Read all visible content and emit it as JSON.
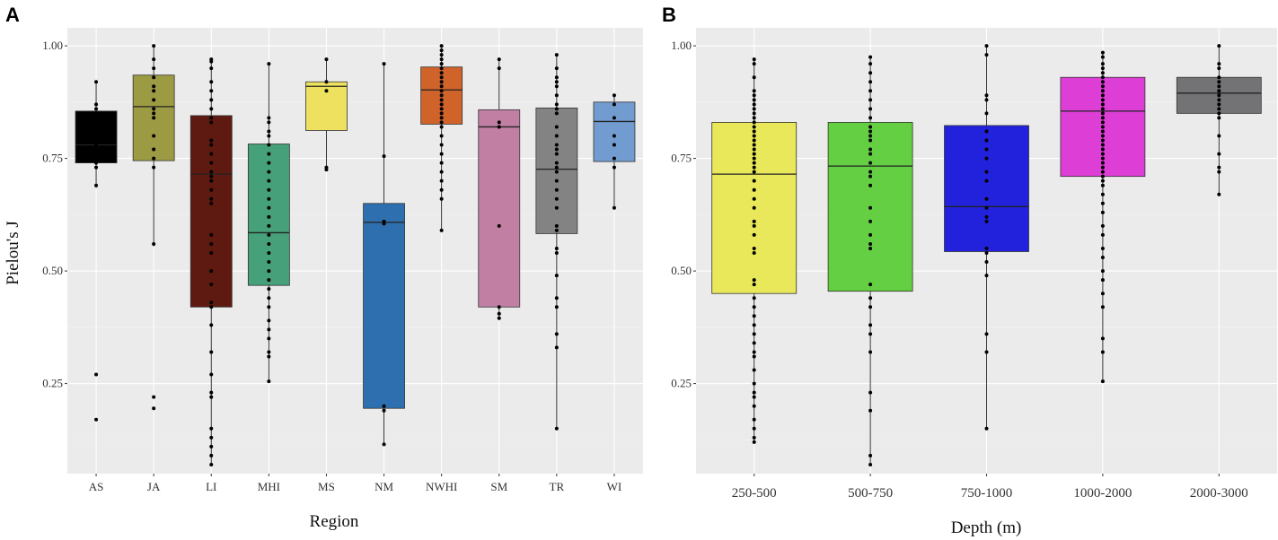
{
  "chart_data": [
    {
      "type": "box",
      "panel_label": "A",
      "xlabel": "Region",
      "ylabel": "Pielou's J",
      "ylim": [
        0.05,
        1.04
      ],
      "yticks": [
        0.25,
        0.5,
        0.75,
        1.0
      ],
      "ytick_labels": [
        "0.25",
        "0.50",
        "0.75",
        "1.00"
      ],
      "grid": true,
      "categories": [
        "AS",
        "JA",
        "LI",
        "MHI",
        "MS",
        "NM",
        "NWHI",
        "SM",
        "TR",
        "WI"
      ],
      "boxes": [
        {
          "q1": 0.74,
          "median": 0.78,
          "q3": 0.855,
          "whisker_low": 0.685,
          "whisker_high": 0.92,
          "color": "#000000",
          "points": [
            0.92,
            0.87,
            0.86,
            0.85,
            0.8,
            0.78,
            0.77,
            0.76,
            0.74,
            0.73,
            0.69,
            0.27,
            0.17
          ]
        },
        {
          "q1": 0.745,
          "median": 0.865,
          "q3": 0.935,
          "whisker_low": 0.555,
          "whisker_high": 1.0,
          "color": "#9c9a42",
          "points": [
            1.0,
            0.97,
            0.95,
            0.93,
            0.91,
            0.9,
            0.88,
            0.86,
            0.85,
            0.84,
            0.8,
            0.77,
            0.75,
            0.73,
            0.56,
            0.22,
            0.195
          ]
        },
        {
          "q1": 0.42,
          "median": 0.715,
          "q3": 0.845,
          "whisker_low": 0.07,
          "whisker_high": 0.97,
          "color": "#5e1a10",
          "points": [
            0.97,
            0.965,
            0.95,
            0.92,
            0.9,
            0.88,
            0.86,
            0.84,
            0.83,
            0.79,
            0.78,
            0.76,
            0.74,
            0.72,
            0.71,
            0.7,
            0.68,
            0.66,
            0.65,
            0.58,
            0.56,
            0.54,
            0.5,
            0.47,
            0.43,
            0.42,
            0.38,
            0.32,
            0.27,
            0.23,
            0.22,
            0.15,
            0.13,
            0.11,
            0.09,
            0.07
          ]
        },
        {
          "q1": 0.468,
          "median": 0.585,
          "q3": 0.782,
          "whisker_low": 0.255,
          "whisker_high": 0.96,
          "color": "#46a07a",
          "points": [
            0.96,
            0.84,
            0.83,
            0.81,
            0.8,
            0.78,
            0.76,
            0.74,
            0.72,
            0.7,
            0.68,
            0.66,
            0.64,
            0.62,
            0.6,
            0.58,
            0.56,
            0.54,
            0.52,
            0.5,
            0.48,
            0.46,
            0.44,
            0.42,
            0.39,
            0.37,
            0.35,
            0.32,
            0.31,
            0.255
          ]
        },
        {
          "q1": 0.812,
          "median": 0.91,
          "q3": 0.92,
          "whisker_low": 0.725,
          "whisker_high": 0.97,
          "color": "#ede15f",
          "points": [
            0.97,
            0.92,
            0.9,
            0.73,
            0.725
          ]
        },
        {
          "q1": 0.195,
          "median": 0.608,
          "q3": 0.65,
          "whisker_low": 0.115,
          "whisker_high": 0.96,
          "color": "#2e6fb0",
          "points": [
            0.96,
            0.755,
            0.61,
            0.605,
            0.2,
            0.19,
            0.115
          ]
        },
        {
          "q1": 0.826,
          "median": 0.902,
          "q3": 0.953,
          "whisker_low": 0.59,
          "whisker_high": 1.0,
          "color": "#d0632a",
          "points": [
            1.0,
            0.99,
            0.98,
            0.97,
            0.96,
            0.95,
            0.94,
            0.93,
            0.92,
            0.91,
            0.9,
            0.89,
            0.88,
            0.87,
            0.86,
            0.85,
            0.84,
            0.83,
            0.82,
            0.8,
            0.78,
            0.76,
            0.74,
            0.72,
            0.7,
            0.68,
            0.66,
            0.59
          ]
        },
        {
          "q1": 0.42,
          "median": 0.82,
          "q3": 0.858,
          "whisker_low": 0.395,
          "whisker_high": 0.97,
          "color": "#c17fa4",
          "points": [
            0.97,
            0.95,
            0.83,
            0.82,
            0.6,
            0.42,
            0.405,
            0.395
          ]
        },
        {
          "q1": 0.583,
          "median": 0.726,
          "q3": 0.862,
          "whisker_low": 0.15,
          "whisker_high": 0.98,
          "color": "#838383",
          "points": [
            0.98,
            0.95,
            0.93,
            0.92,
            0.91,
            0.89,
            0.87,
            0.86,
            0.85,
            0.82,
            0.8,
            0.78,
            0.77,
            0.76,
            0.74,
            0.73,
            0.72,
            0.7,
            0.68,
            0.66,
            0.64,
            0.6,
            0.59,
            0.55,
            0.54,
            0.49,
            0.44,
            0.42,
            0.36,
            0.33,
            0.15
          ]
        },
        {
          "q1": 0.743,
          "median": 0.832,
          "q3": 0.875,
          "whisker_low": 0.64,
          "whisker_high": 0.89,
          "color": "#729cd0",
          "points": [
            0.89,
            0.87,
            0.84,
            0.8,
            0.78,
            0.75,
            0.73,
            0.64
          ]
        }
      ]
    },
    {
      "type": "box",
      "panel_label": "B",
      "xlabel": "Depth (m)",
      "ylabel": "",
      "ylim": [
        0.05,
        1.04
      ],
      "yticks": [
        0.25,
        0.5,
        0.75,
        1.0
      ],
      "ytick_labels": [
        "0.25",
        "0.50",
        "0.75",
        "1.00"
      ],
      "grid": true,
      "categories": [
        "250-500",
        "500-750",
        "750-1000",
        "1000-2000",
        "2000-3000"
      ],
      "boxes": [
        {
          "q1": 0.45,
          "median": 0.715,
          "q3": 0.83,
          "whisker_low": 0.12,
          "whisker_high": 0.97,
          "color": "#e8e85a",
          "points": [
            0.97,
            0.96,
            0.93,
            0.9,
            0.89,
            0.88,
            0.87,
            0.86,
            0.85,
            0.84,
            0.83,
            0.82,
            0.81,
            0.8,
            0.79,
            0.78,
            0.77,
            0.76,
            0.75,
            0.74,
            0.73,
            0.72,
            0.7,
            0.68,
            0.66,
            0.64,
            0.61,
            0.6,
            0.58,
            0.55,
            0.54,
            0.48,
            0.47,
            0.44,
            0.42,
            0.4,
            0.38,
            0.36,
            0.34,
            0.32,
            0.31,
            0.28,
            0.25,
            0.23,
            0.22,
            0.2,
            0.17,
            0.15,
            0.13,
            0.12
          ]
        },
        {
          "q1": 0.455,
          "median": 0.733,
          "q3": 0.83,
          "whisker_low": 0.07,
          "whisker_high": 0.975,
          "color": "#64cf42",
          "points": [
            0.975,
            0.96,
            0.94,
            0.92,
            0.9,
            0.88,
            0.86,
            0.84,
            0.82,
            0.81,
            0.8,
            0.79,
            0.77,
            0.76,
            0.74,
            0.72,
            0.71,
            0.69,
            0.64,
            0.61,
            0.58,
            0.56,
            0.55,
            0.47,
            0.44,
            0.42,
            0.38,
            0.36,
            0.32,
            0.23,
            0.19,
            0.09,
            0.07
          ]
        },
        {
          "q1": 0.543,
          "median": 0.643,
          "q3": 0.823,
          "whisker_low": 0.15,
          "whisker_high": 1.0,
          "color": "#2222dd",
          "points": [
            1.0,
            0.98,
            0.89,
            0.88,
            0.85,
            0.81,
            0.79,
            0.77,
            0.75,
            0.72,
            0.7,
            0.66,
            0.64,
            0.62,
            0.61,
            0.55,
            0.54,
            0.52,
            0.49,
            0.36,
            0.32,
            0.15
          ]
        },
        {
          "q1": 0.71,
          "median": 0.855,
          "q3": 0.93,
          "whisker_low": 0.255,
          "whisker_high": 0.985,
          "color": "#dd3fd6",
          "points": [
            0.985,
            0.975,
            0.96,
            0.95,
            0.94,
            0.93,
            0.92,
            0.91,
            0.9,
            0.89,
            0.88,
            0.87,
            0.86,
            0.85,
            0.84,
            0.83,
            0.82,
            0.81,
            0.8,
            0.79,
            0.78,
            0.77,
            0.76,
            0.75,
            0.74,
            0.73,
            0.72,
            0.71,
            0.7,
            0.69,
            0.67,
            0.65,
            0.63,
            0.6,
            0.58,
            0.55,
            0.53,
            0.5,
            0.48,
            0.45,
            0.42,
            0.35,
            0.32,
            0.255
          ]
        },
        {
          "q1": 0.85,
          "median": 0.895,
          "q3": 0.93,
          "whisker_low": 0.67,
          "whisker_high": 1.0,
          "color": "#737275",
          "points": [
            1.0,
            0.96,
            0.95,
            0.93,
            0.92,
            0.91,
            0.9,
            0.89,
            0.88,
            0.87,
            0.86,
            0.85,
            0.84,
            0.8,
            0.76,
            0.73,
            0.72,
            0.67
          ]
        }
      ]
    }
  ]
}
